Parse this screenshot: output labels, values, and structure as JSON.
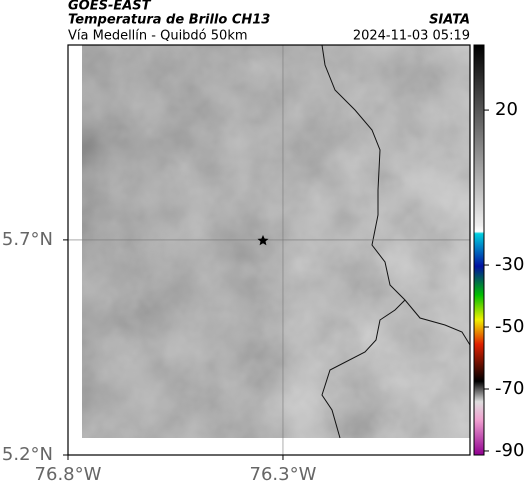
{
  "header": {
    "title": "GOES-EAST",
    "subtitle": "Temperatura de Brillo CH13",
    "source": "SIATA",
    "region": "Vía Medellín - Quibdó 50km",
    "timestamp": "2024-11-03 05:19"
  },
  "map": {
    "xlim": [
      -76.8,
      -75.865
    ],
    "ylim": [
      5.2,
      6.153
    ],
    "xticks": [
      {
        "value": -76.8,
        "label": "76.8°W"
      },
      {
        "value": -76.3,
        "label": "76.3°W"
      }
    ],
    "yticks": [
      {
        "value": 5.2,
        "label": "5.2°N"
      },
      {
        "value": 5.7,
        "label": "5.7°N"
      }
    ],
    "grid": true
  },
  "colorbar": {
    "clim": [
      -91.3,
      41
    ],
    "ticks": [
      20,
      -30,
      -50,
      -70,
      -90
    ]
  }
}
